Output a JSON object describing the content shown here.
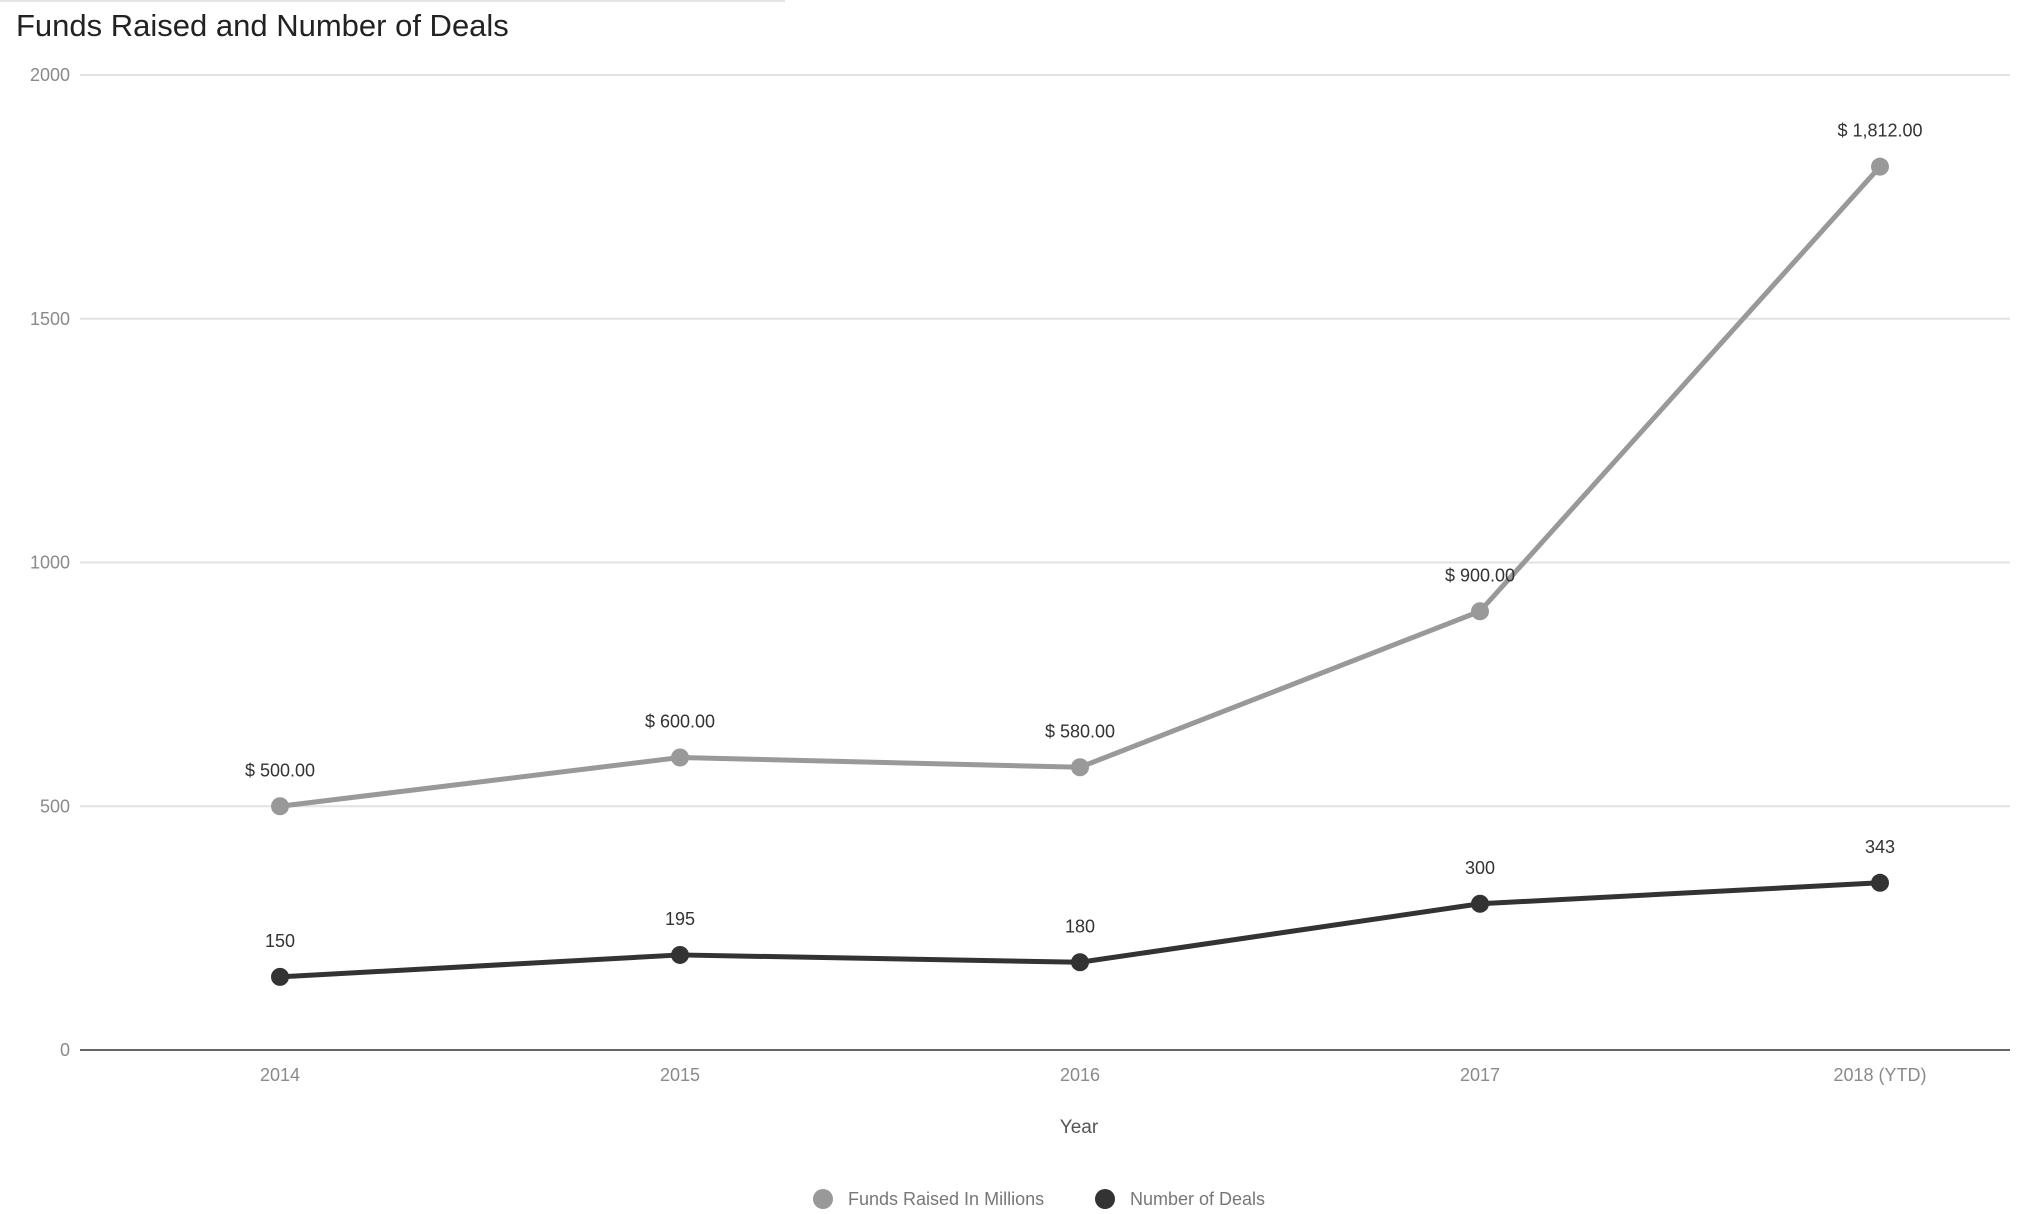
{
  "chart_data": {
    "type": "line",
    "title": "Funds Raised and Number of Deals",
    "xlabel": "Year",
    "ylabel": "",
    "categories": [
      "2014",
      "2015",
      "2016",
      "2017",
      "2018 (YTD)"
    ],
    "ylim": [
      0,
      2000
    ],
    "yticks": [
      0,
      500,
      1000,
      1500,
      2000
    ],
    "grid": true,
    "legend_position": "bottom",
    "series": [
      {
        "name": "Funds Raised In Millions",
        "values": [
          500,
          600,
          580,
          900,
          1812
        ],
        "labels": [
          "$ 500.00",
          "$ 600.00",
          "$ 580.00",
          "$ 900.00",
          "$ 1,812.00"
        ],
        "color": "#999999"
      },
      {
        "name": "Number of Deals",
        "values": [
          150,
          195,
          180,
          300,
          343
        ],
        "labels": [
          "150",
          "195",
          "180",
          "300",
          "343"
        ],
        "color": "#333333"
      }
    ]
  }
}
